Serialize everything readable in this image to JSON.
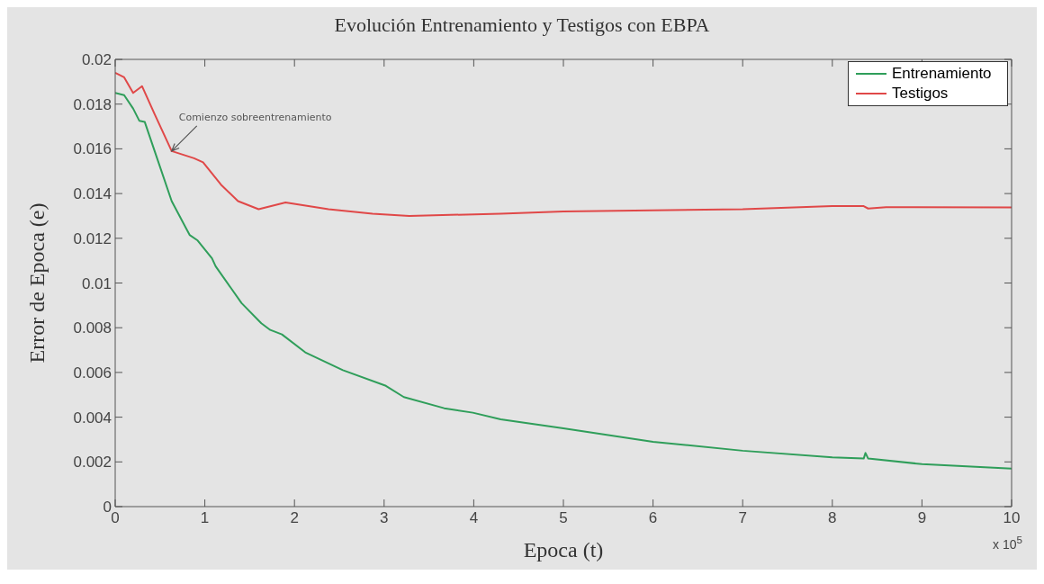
{
  "chart_data": {
    "type": "line",
    "title": "Evolución Entrenamiento y Testigos con EBPA",
    "xlabel": "Epoca (t)",
    "ylabel": "Error de Epoca (e)",
    "annotations": [
      {
        "text": "Comienzo sobreentrenamiento",
        "x": 0.63,
        "y": 0.0159
      },
      "x 10$^{5}$"
    ],
    "series": [
      {
        "name": "Entrenamiento",
        "color": "#2f9e5a",
        "x": [
          0,
          0.1,
          0.2,
          0.27,
          0.33,
          0.44,
          0.63,
          0.83,
          0.92,
          1.08,
          1.12,
          1.41,
          1.63,
          1.73,
          1.86,
          2.12,
          2.54,
          3.02,
          3.22,
          3.67,
          3.99,
          4.3,
          4.65,
          5,
          6,
          7,
          8,
          8.35,
          8.37,
          8.4,
          9,
          10
        ],
        "values": [
          0.0185,
          0.0184,
          0.0178,
          0.01725,
          0.0172,
          0.0159,
          0.01366,
          0.01215,
          0.0119,
          0.0111,
          0.01075,
          0.0091,
          0.0082,
          0.0079,
          0.0077,
          0.0069,
          0.0061,
          0.0054,
          0.0049,
          0.0044,
          0.0042,
          0.0039,
          0.0037,
          0.0035,
          0.0029,
          0.0025,
          0.0022,
          0.00215,
          0.0024,
          0.00215,
          0.0019,
          0.0017
        ]
      },
      {
        "name": "Testigos",
        "color": "#e04848",
        "x": [
          0,
          0.1,
          0.2,
          0.3,
          0.44,
          0.63,
          0.88,
          0.98,
          1.18,
          1.37,
          1.6,
          1.9,
          2.38,
          2.87,
          3.28,
          4.3,
          5,
          7,
          8,
          8.35,
          8.4,
          8.6,
          10
        ],
        "values": [
          0.0194,
          0.0192,
          0.0185,
          0.0188,
          0.01755,
          0.0159,
          0.01558,
          0.0154,
          0.0144,
          0.01366,
          0.0133,
          0.0136,
          0.0133,
          0.0131,
          0.013,
          0.0131,
          0.0132,
          0.0133,
          0.01344,
          0.01344,
          0.01333,
          0.01339,
          0.01338
        ]
      }
    ],
    "xlim": [
      0,
      10
    ],
    "xticks": [
      0,
      1,
      2,
      3,
      4,
      5,
      6,
      7,
      8,
      9,
      10
    ],
    "ylim": [
      0,
      0.02
    ],
    "yticks": [
      0,
      0.002,
      0.004,
      0.006,
      0.008,
      0.01,
      0.012,
      0.014,
      0.016,
      0.018,
      0.02
    ],
    "grid": false,
    "legend": "top right",
    "marker": "none",
    "line_style": "solid"
  }
}
